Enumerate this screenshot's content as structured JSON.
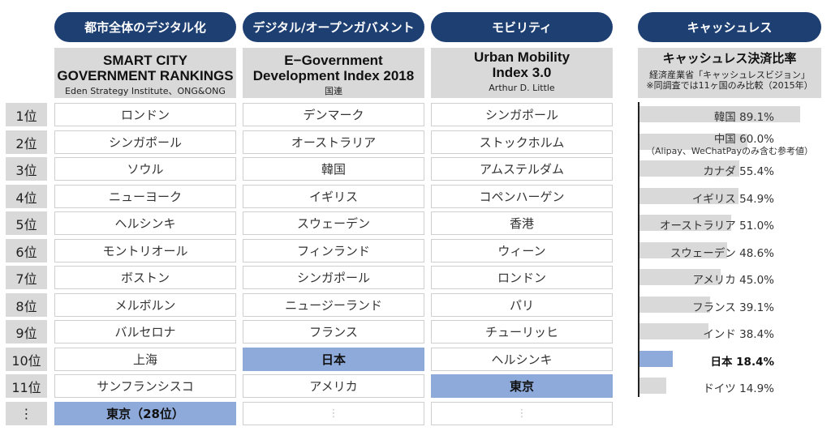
{
  "categories": [
    "都市全体のデジタル化",
    "デジタル/オープンガバメント",
    "モビリティ",
    "キャッシュレス"
  ],
  "col1": {
    "title_line1": "SMART CITY",
    "title_line2": "GOVERNMENT RANKINGS",
    "source": "Eden Strategy Institute、ONG&ONG",
    "items": [
      "ロンドン",
      "シンガポール",
      "ソウル",
      "ニューヨーク",
      "ヘルシンキ",
      "モントリオール",
      "ボストン",
      "メルボルン",
      "バルセロナ",
      "上海",
      "サンフランシスコ",
      "東京（28位）"
    ]
  },
  "col2": {
    "title_line1": "E−Government",
    "title_line2": "Development Index 2018",
    "source": "国連",
    "items": [
      "デンマーク",
      "オーストラリア",
      "韓国",
      "イギリス",
      "スウェーデン",
      "フィンランド",
      "シンガポール",
      "ニュージーランド",
      "フランス",
      "日本",
      "アメリカ",
      "⋮"
    ]
  },
  "col3": {
    "title_line1": "Urban Mobility",
    "title_line2": "Index 3.0",
    "source": "Arthur D. Little",
    "items": [
      "シンガポール",
      "ストックホルム",
      "アムステルダム",
      "コペンハーゲン",
      "香港",
      "ウィーン",
      "ロンドン",
      "パリ",
      "チューリッヒ",
      "ヘルシンキ",
      "東京",
      "⋮"
    ]
  },
  "col4": {
    "title": "キャッシュレス決済比率",
    "source_line1": "経済産業省「キャッシュレスビジョン」",
    "source_line2": "※同調査では11ヶ国のみ比較（2015年）"
  },
  "ranks": [
    "1位",
    "2位",
    "3位",
    "4位",
    "5位",
    "6位",
    "7位",
    "8位",
    "9位",
    "10位",
    "11位",
    "⋮"
  ],
  "china_note": "（Alipay、WeChatPayのみ含む参考値）",
  "colors": {
    "pill": "#1e3f72",
    "highlight": "#8eaadb",
    "bar": "#d9d9d9"
  },
  "chart_data": {
    "type": "bar",
    "orientation": "horizontal",
    "categories": [
      "韓国",
      "中国",
      "カナダ",
      "イギリス",
      "オーストラリア",
      "スウェーデン",
      "アメリカ",
      "フランス",
      "インド",
      "日本",
      "ドイツ"
    ],
    "values": [
      89.1,
      60.0,
      55.4,
      54.9,
      51.0,
      48.6,
      45.0,
      39.1,
      38.4,
      18.4,
      14.9
    ],
    "labels": [
      "韓国 89.1%",
      "中国 60.0%",
      "カナダ 55.4%",
      "イギリス 54.9%",
      "オーストラリア 51.0%",
      "スウェーデン 48.6%",
      "アメリカ 45.0%",
      "フランス 39.1%",
      "インド 38.4%",
      "日本 18.4%",
      "ドイツ 14.9%"
    ],
    "highlight": "日本"
  }
}
